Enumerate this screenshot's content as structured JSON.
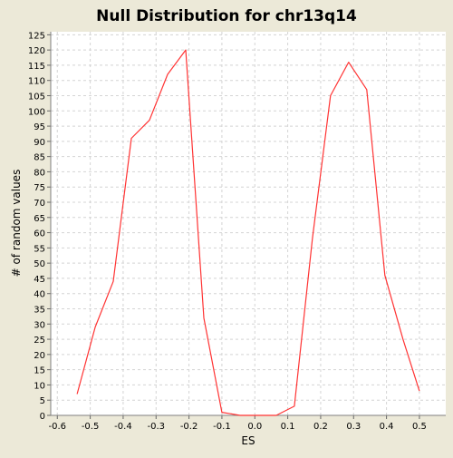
{
  "chart_data": {
    "type": "line",
    "title": "Null Distribution for chr13q14",
    "xlabel": "ES",
    "ylabel": "# of random values",
    "xlim": [
      -0.62,
      0.58
    ],
    "ylim": [
      0,
      126
    ],
    "x_ticks": [
      -0.6,
      -0.5,
      -0.4,
      -0.3,
      -0.2,
      -0.1,
      0.0,
      0.1,
      0.2,
      0.3,
      0.4,
      0.5
    ],
    "x_tick_labels": [
      "-0.6",
      "-0.5",
      "-0.4",
      "-0.3",
      "-0.2",
      "-0.1",
      "0.0",
      "0.1",
      "0.2",
      "0.3",
      "0.4",
      "0.5"
    ],
    "y_ticks": [
      0,
      5,
      10,
      15,
      20,
      25,
      30,
      35,
      40,
      45,
      50,
      55,
      60,
      65,
      70,
      75,
      80,
      85,
      90,
      95,
      100,
      105,
      110,
      115,
      120,
      125
    ],
    "grid": true,
    "colors": {
      "line": "#ff3333",
      "plot_background": "#ffffff",
      "grid": "#d4d4d4",
      "background": "#ece9d8"
    },
    "x": [
      -0.54,
      -0.485,
      -0.43,
      -0.375,
      -0.32,
      -0.265,
      -0.21,
      -0.155,
      -0.1,
      -0.045,
      0.01,
      0.065,
      0.12,
      0.175,
      0.23,
      0.285,
      0.34,
      0.395,
      0.45,
      0.5
    ],
    "values": [
      7,
      29,
      44,
      91,
      97,
      112,
      120,
      32,
      1,
      0,
      0,
      0,
      3,
      58,
      105,
      116,
      107,
      46,
      25,
      8
    ]
  }
}
